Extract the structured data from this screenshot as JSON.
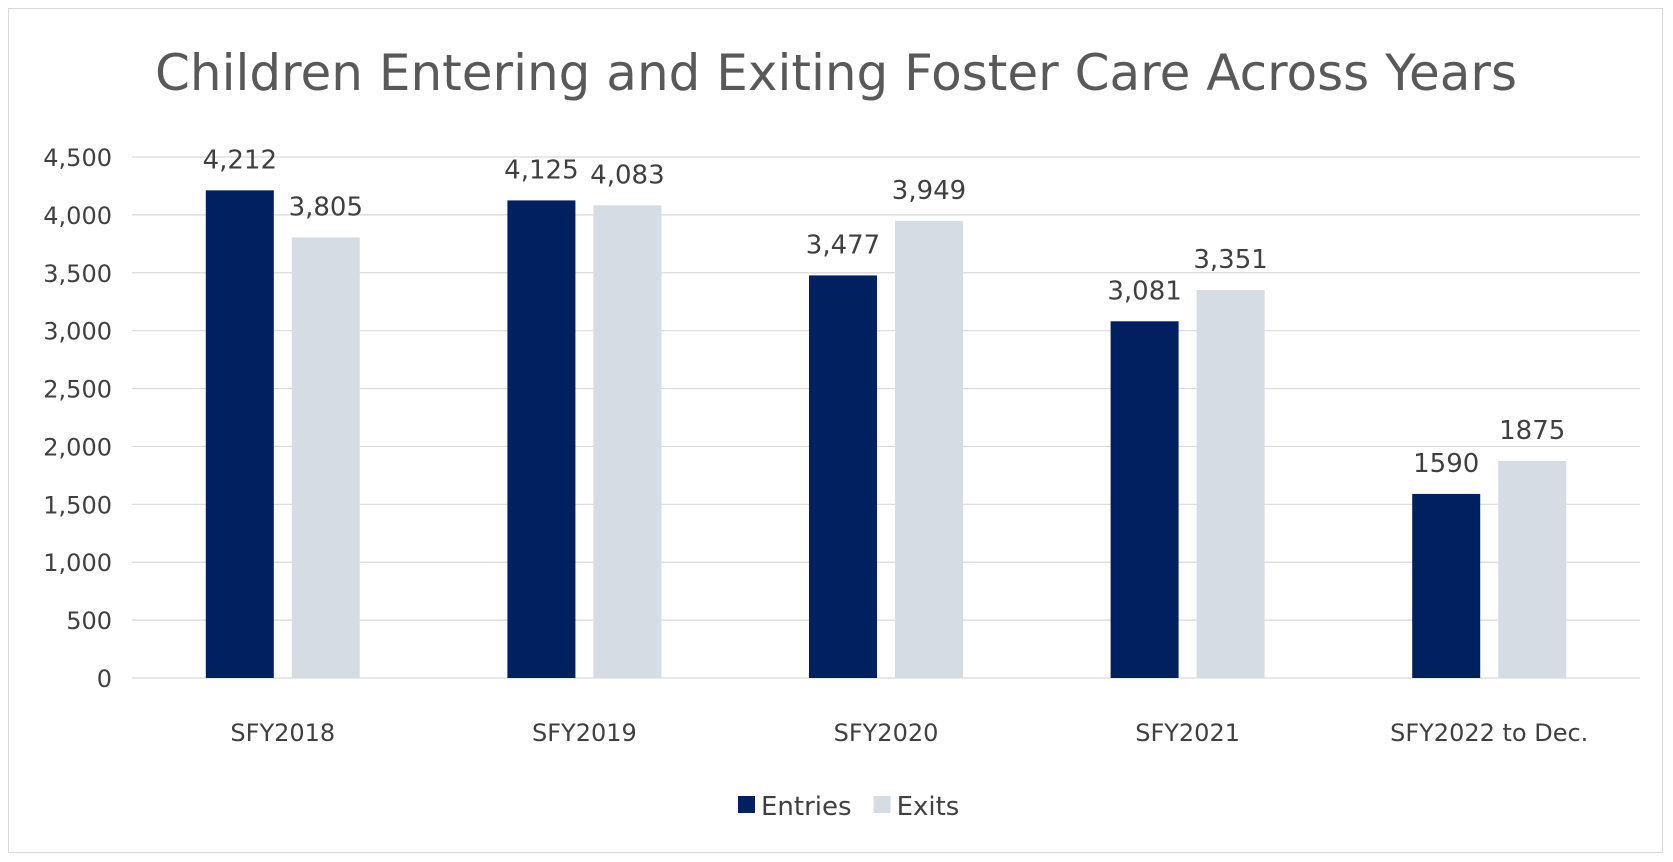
{
  "chart_data": {
    "type": "bar",
    "title": "Children Entering and Exiting Foster Care Across Years",
    "xlabel": "",
    "ylabel": "",
    "categories": [
      "SFY2018",
      "SFY2019",
      "SFY2020",
      "SFY2021",
      "SFY2022 to Dec."
    ],
    "series": [
      {
        "name": "Entries",
        "color": "#002060",
        "values": [
          4212,
          4125,
          3477,
          3081,
          1590
        ],
        "labels": [
          "4,212",
          "4,125",
          "3,477",
          "3,081",
          "1590"
        ]
      },
      {
        "name": "Exits",
        "color": "#D6DCE4",
        "values": [
          3805,
          4083,
          3949,
          3351,
          1875
        ],
        "labels": [
          "3,805",
          "4,083",
          "3,949",
          "3,351",
          "1875"
        ]
      }
    ],
    "ylim": [
      0,
      4500
    ],
    "yticks": [
      0,
      500,
      1000,
      1500,
      2000,
      2500,
      3000,
      3500,
      4000,
      4500
    ],
    "ytick_labels": [
      "0",
      "500",
      "1,000",
      "1,500",
      "2,000",
      "2,500",
      "3,000",
      "3,500",
      "4,000",
      "4,500"
    ],
    "grid": true,
    "gridline_color": "#d9d9d9",
    "legend": "bottom"
  }
}
